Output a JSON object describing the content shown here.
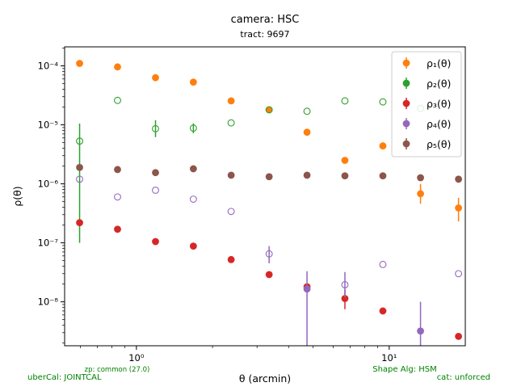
{
  "chart_data": {
    "type": "scatter",
    "title": "camera: HSC",
    "subtitle": "tract: 9697",
    "xlabel": "θ (arcmin)",
    "ylabel": "ρ(θ)",
    "xscale": "log",
    "yscale": "log",
    "xlim": [
      0.52,
      20.0
    ],
    "ylim": [
      1.8e-09,
      0.00021
    ],
    "x_ticks": [
      {
        "value": 1,
        "label": "10⁰"
      },
      {
        "value": 10,
        "label": "10¹"
      }
    ],
    "y_ticks": [
      {
        "value": 1e-08,
        "label": "10⁻⁸"
      },
      {
        "value": 1e-07,
        "label": "10⁻⁷"
      },
      {
        "value": 1e-06,
        "label": "10⁻⁶"
      },
      {
        "value": 1e-05,
        "label": "10⁻⁵"
      },
      {
        "value": 0.0001,
        "label": "10⁻⁴"
      }
    ],
    "grid": false,
    "legend_position": "top-right",
    "series": [
      {
        "name": "ρ₁(θ)",
        "color": "#ff7f0e",
        "points": [
          {
            "x": 0.596,
            "y": 0.00011,
            "filled": true
          },
          {
            "x": 0.842,
            "y": 9.6e-05,
            "filled": true
          },
          {
            "x": 1.19,
            "y": 6.3e-05,
            "filled": true
          },
          {
            "x": 1.68,
            "y": 5.3e-05,
            "filled": true
          },
          {
            "x": 2.37,
            "y": 2.55e-05,
            "filled": true
          },
          {
            "x": 3.35,
            "y": 1.8e-05,
            "filled": true
          },
          {
            "x": 4.73,
            "y": 7.5e-06,
            "filled": true
          },
          {
            "x": 6.68,
            "y": 2.5e-06,
            "filled": true,
            "err": [
              2.2e-06,
              2.8e-06
            ]
          },
          {
            "x": 9.44,
            "y": 4.4e-06,
            "filled": true
          },
          {
            "x": 13.3,
            "y": 6.8e-07,
            "filled": true,
            "err": [
              4.6e-07,
              1e-06
            ]
          },
          {
            "x": 18.8,
            "y": 3.9e-07,
            "filled": true,
            "err": [
              2.3e-07,
              5.8e-07
            ]
          }
        ]
      },
      {
        "name": "ρ₂(θ)",
        "color": "#2ca02c",
        "points": [
          {
            "x": 0.596,
            "y": 5.3e-06,
            "filled": false,
            "err": [
              1e-07,
              1.05e-05
            ]
          },
          {
            "x": 0.842,
            "y": 2.6e-05,
            "filled": false
          },
          {
            "x": 1.19,
            "y": 8.6e-06,
            "filled": false,
            "err": [
              6.2e-06,
              1.2e-05
            ]
          },
          {
            "x": 1.68,
            "y": 8.8e-06,
            "filled": false,
            "err": [
              7.2e-06,
              1.06e-05
            ]
          },
          {
            "x": 2.37,
            "y": 1.08e-05,
            "filled": false
          },
          {
            "x": 3.35,
            "y": 1.8e-05,
            "filled": false
          },
          {
            "x": 4.73,
            "y": 1.7e-05,
            "filled": false
          },
          {
            "x": 6.68,
            "y": 2.55e-05,
            "filled": false
          },
          {
            "x": 9.44,
            "y": 2.45e-05,
            "filled": false
          },
          {
            "x": 13.3,
            "y": 1.9e-05,
            "filled": false
          }
        ]
      },
      {
        "name": "ρ₃(θ)",
        "color": "#d62728",
        "points": [
          {
            "x": 0.596,
            "y": 2.2e-07,
            "filled": true
          },
          {
            "x": 0.842,
            "y": 1.7e-07,
            "filled": true
          },
          {
            "x": 1.19,
            "y": 1.05e-07,
            "filled": true
          },
          {
            "x": 1.68,
            "y": 8.8e-08,
            "filled": true
          },
          {
            "x": 2.37,
            "y": 5.2e-08,
            "filled": true
          },
          {
            "x": 3.35,
            "y": 2.9e-08,
            "filled": true
          },
          {
            "x": 4.73,
            "y": 1.8e-08,
            "filled": true
          },
          {
            "x": 6.68,
            "y": 1.14e-08,
            "filled": true,
            "err": [
              7.5e-09,
              1.6e-08
            ]
          },
          {
            "x": 9.44,
            "y": 7e-09,
            "filled": true
          },
          {
            "x": 18.8,
            "y": 2.6e-09,
            "filled": true
          }
        ]
      },
      {
        "name": "ρ₄(θ)",
        "color": "#9467bd",
        "points": [
          {
            "x": 0.596,
            "y": 1.2e-06,
            "filled": false
          },
          {
            "x": 0.842,
            "y": 6e-07,
            "filled": false
          },
          {
            "x": 1.19,
            "y": 7.8e-07,
            "filled": false
          },
          {
            "x": 1.68,
            "y": 5.5e-07,
            "filled": false
          },
          {
            "x": 2.37,
            "y": 3.4e-07,
            "filled": false
          },
          {
            "x": 3.35,
            "y": 6.5e-08,
            "filled": false,
            "err": [
              4.5e-08,
              8.8e-08
            ]
          },
          {
            "x": 4.73,
            "y": 1.65e-08,
            "filled": true,
            "err": [
              1.8e-09,
              3.3e-08
            ]
          },
          {
            "x": 6.68,
            "y": 1.95e-08,
            "filled": false,
            "err": [
              1.2e-08,
              3.2e-08
            ]
          },
          {
            "x": 9.44,
            "y": 4.3e-08,
            "filled": false
          },
          {
            "x": 13.3,
            "y": 3.2e-09,
            "filled": true,
            "err": [
              1.8e-09,
              1e-08
            ]
          },
          {
            "x": 18.8,
            "y": 3e-08,
            "filled": false
          }
        ]
      },
      {
        "name": "ρ₅(θ)",
        "color": "#8c564b",
        "points": [
          {
            "x": 0.596,
            "y": 1.9e-06,
            "filled": true
          },
          {
            "x": 0.842,
            "y": 1.75e-06,
            "filled": true
          },
          {
            "x": 1.19,
            "y": 1.55e-06,
            "filled": true
          },
          {
            "x": 1.68,
            "y": 1.8e-06,
            "filled": true
          },
          {
            "x": 2.37,
            "y": 1.4e-06,
            "filled": true
          },
          {
            "x": 3.35,
            "y": 1.32e-06,
            "filled": true
          },
          {
            "x": 4.73,
            "y": 1.4e-06,
            "filled": true
          },
          {
            "x": 6.68,
            "y": 1.37e-06,
            "filled": true
          },
          {
            "x": 9.44,
            "y": 1.37e-06,
            "filled": true
          },
          {
            "x": 13.3,
            "y": 1.27e-06,
            "filled": true
          },
          {
            "x": 18.8,
            "y": 1.2e-06,
            "filled": true
          }
        ]
      }
    ],
    "annotations": [
      {
        "text": "zp: common (27.0)",
        "position": "bottom-left",
        "color": "#008000"
      },
      {
        "text": "uberCal: JOINTCAL",
        "position": "bottom-left",
        "color": "#008000"
      },
      {
        "text": "Shape Alg: HSM",
        "position": "bottom-right",
        "color": "#008000"
      },
      {
        "text": "cat: unforced",
        "position": "bottom-right",
        "color": "#008000"
      }
    ]
  }
}
